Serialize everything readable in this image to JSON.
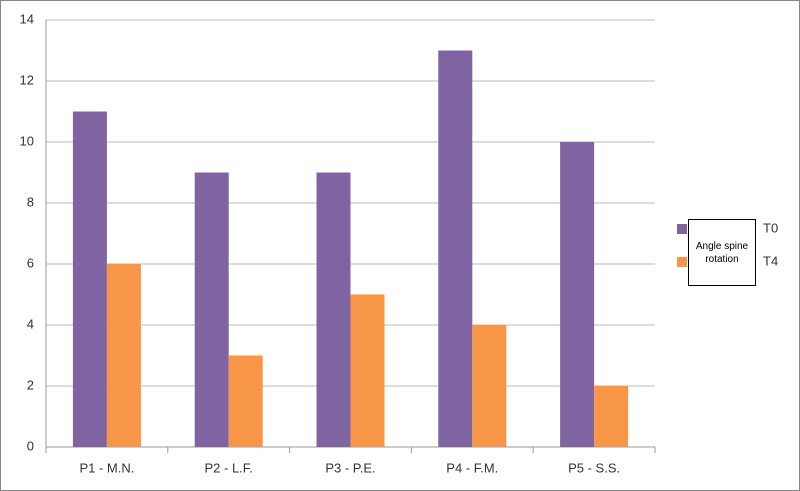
{
  "chart_data": {
    "type": "bar",
    "annotation": "Angle spine rotation",
    "categories": [
      "P1 - M.N.",
      "P2 - L.F.",
      "P3 - P.E.",
      "P4 - F.M.",
      "P5 - S.S."
    ],
    "series": [
      {
        "name": "T0",
        "color": "#8064a2",
        "values": [
          11,
          9,
          9,
          13,
          10
        ]
      },
      {
        "name": "T4",
        "color": "#f79646",
        "values": [
          6,
          3,
          5,
          4,
          2
        ]
      }
    ],
    "ylim": [
      0,
      14
    ],
    "yticks": [
      0,
      2,
      4,
      6,
      8,
      10,
      12,
      14
    ],
    "grid": true,
    "legend": "right"
  }
}
